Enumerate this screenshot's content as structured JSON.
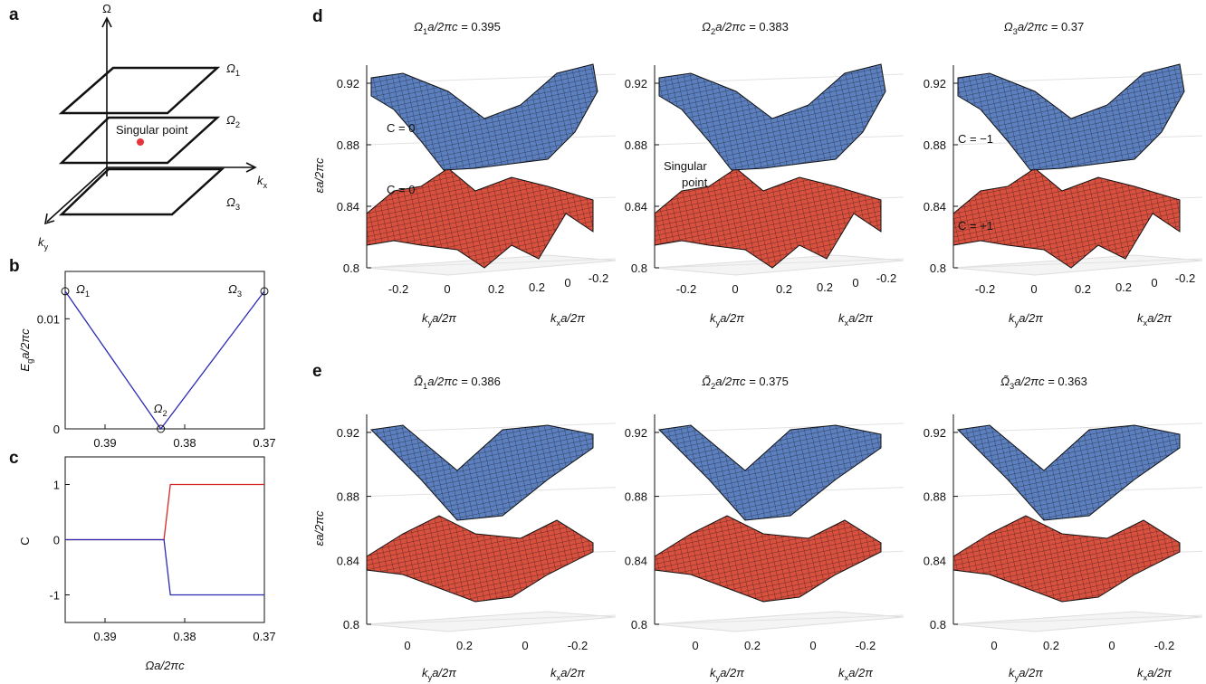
{
  "panel_labels": [
    "a",
    "b",
    "c",
    "d",
    "e"
  ],
  "panel_a": {
    "omega": "Ω",
    "kx": {
      "base": "k",
      "sub": "x"
    },
    "ky": {
      "base": "k",
      "sub": "y"
    },
    "planes": [
      {
        "base": "Ω",
        "sub": "1"
      },
      {
        "base": "Ω",
        "sub": "2"
      },
      {
        "base": "Ω",
        "sub": "3"
      }
    ],
    "annotation": "Singular point",
    "point_color": "#e8323c"
  },
  "chart_data": [
    {
      "type": "line",
      "y_label": {
        "base": "E",
        "sub": "g",
        "rest": "a/2πc"
      },
      "x": [
        0.395,
        0.383,
        0.37
      ],
      "series": [
        {
          "color": "#2b2bb0",
          "values": [
            0.0125,
            0,
            0.0125
          ]
        }
      ],
      "point_labels": [
        {
          "base": "Ω",
          "sub": "1"
        },
        {
          "base": "Ω",
          "sub": "2"
        },
        {
          "base": "Ω",
          "sub": "3"
        }
      ],
      "markers": "open-circle",
      "xlim": [
        0.395,
        0.37
      ],
      "ylim": [
        0,
        0.0143
      ],
      "xticks": [
        0.39,
        0.38,
        0.37
      ],
      "yticks": [
        0,
        0.01
      ]
    },
    {
      "type": "line",
      "x_label": "Ωa/2πc",
      "y_label": "C",
      "x": [
        0.395,
        0.3826,
        0.3818,
        0.37
      ],
      "series": [
        {
          "color": "#d62728",
          "values": [
            0,
            0,
            1,
            1
          ]
        },
        {
          "color": "#2b2bb0",
          "values": [
            0,
            0,
            -1,
            -1
          ]
        }
      ],
      "xlim": [
        0.395,
        0.37
      ],
      "ylim": [
        -1.5,
        1.5
      ],
      "xticks": [
        0.39,
        0.38,
        0.37
      ],
      "yticks": [
        -1,
        0,
        1
      ]
    }
  ],
  "surface_rows": [
    {
      "z_label": "εa/2πc",
      "zticks": [
        0.8,
        0.84,
        0.88,
        0.92
      ],
      "ky_label": {
        "base": "k",
        "sub": "y",
        "rest": "a/2π"
      },
      "kx_label": {
        "base": "k",
        "sub": "x",
        "rest": "a/2π"
      },
      "panels": [
        {
          "title": {
            "base": "Ω",
            "sub": "1",
            "rest": "a/2πc = ",
            "value": 0.395
          },
          "ky_ticks": [
            -0.2,
            0,
            0.2
          ],
          "kx_ticks": [
            0.2,
            0,
            -0.2
          ],
          "annotations": [
            "C = 0",
            "C = 0"
          ]
        },
        {
          "title": {
            "base": "Ω",
            "sub": "2",
            "rest": "a/2πc = ",
            "value": 0.383
          },
          "ky_ticks": [
            -0.2,
            0,
            0.2
          ],
          "kx_ticks": [
            0.2,
            0,
            -0.2
          ],
          "annotations": [
            "Singular",
            "point"
          ]
        },
        {
          "title": {
            "base": "Ω",
            "sub": "3",
            "rest": "a/2πc = ",
            "value": 0.37
          },
          "ky_ticks": [
            -0.2,
            0,
            0.2
          ],
          "kx_ticks": [
            0.2,
            0,
            -0.2
          ],
          "annotations": [
            "C = −1",
            "C = +1"
          ]
        }
      ]
    },
    {
      "z_label": "εa/2πc",
      "zticks": [
        0.8,
        0.84,
        0.88,
        0.92
      ],
      "ky_label": {
        "base": "k",
        "sub": "y",
        "rest": "a/2π"
      },
      "kx_label": {
        "base": "k",
        "sub": "x",
        "rest": "a/2π"
      },
      "panels": [
        {
          "title": {
            "base": "Ω̃",
            "sub": "1",
            "rest": "a/2πc = ",
            "value": 0.386
          },
          "ky_ticks": [
            0,
            0.2
          ],
          "kx_ticks": [
            0,
            -0.2
          ]
        },
        {
          "title": {
            "base": "Ω̃",
            "sub": "2",
            "rest": "a/2πc = ",
            "value": 0.375
          },
          "ky_ticks": [
            0,
            0.2
          ],
          "kx_ticks": [
            0,
            -0.2
          ]
        },
        {
          "title": {
            "base": "Ω̃",
            "sub": "3",
            "rest": "a/2πc = ",
            "value": 0.363
          },
          "ky_ticks": [
            0,
            0.2
          ],
          "kx_ticks": [
            0,
            -0.2
          ]
        }
      ]
    }
  ]
}
